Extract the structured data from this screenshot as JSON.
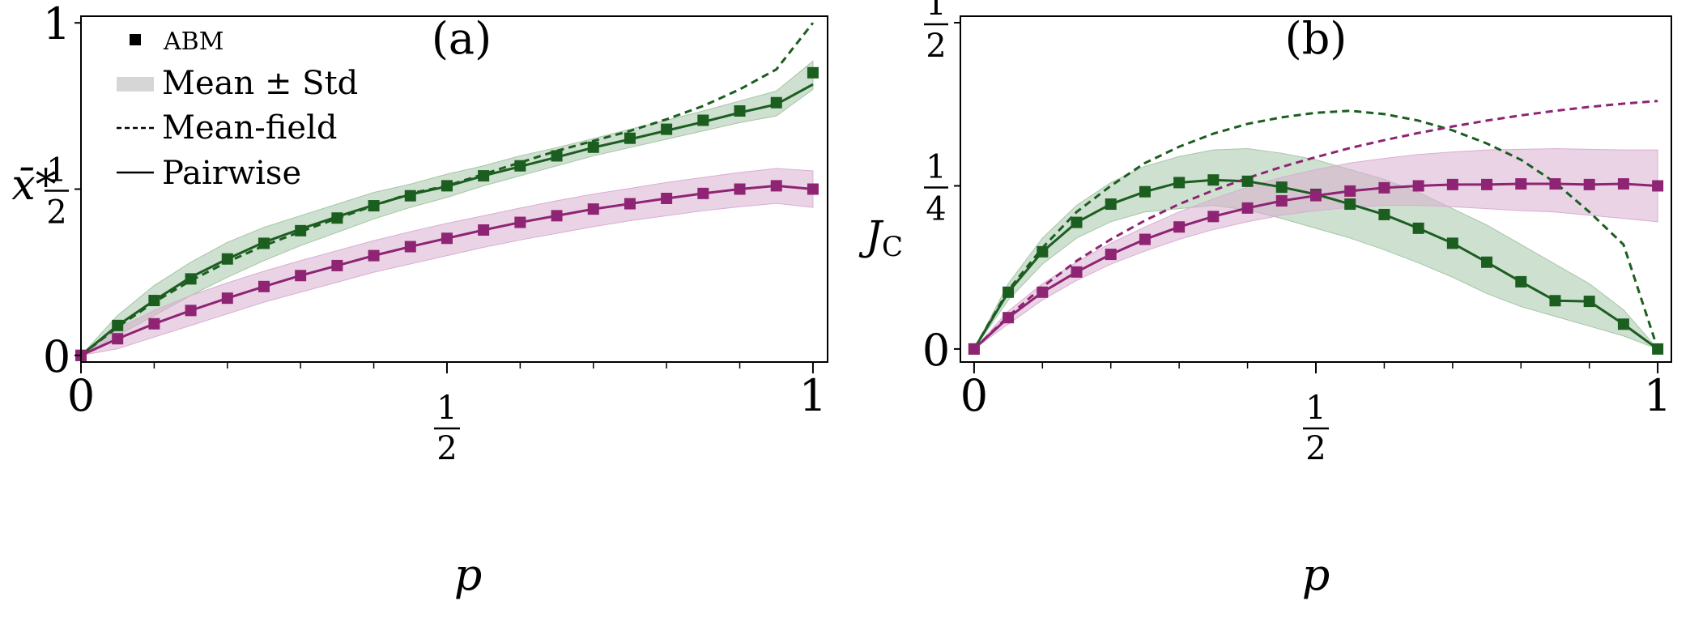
{
  "colors": {
    "green": "#1b5e20",
    "magenta": "#8e2473",
    "green_band": "#a5c6a8",
    "magenta_band": "#d9aed0",
    "legend_band": "#d6d6d6"
  },
  "legend": {
    "abm": "ABM",
    "mean_std": "Mean ± Std",
    "mean_field": "Mean-field",
    "pairwise": "Pairwise"
  },
  "chart_data": [
    {
      "type": "line",
      "panel_label": "(a)",
      "xlabel": "p",
      "ylabel": "x̄*",
      "xlim": [
        0,
        1.02
      ],
      "ylim": [
        -0.02,
        1.02
      ],
      "xticks": [
        {
          "v": 0,
          "num": "0"
        },
        {
          "v": 0.5,
          "num": "1",
          "den": "2"
        },
        {
          "v": 1,
          "num": "1"
        }
      ],
      "yticks": [
        {
          "v": 0,
          "num": "0"
        },
        {
          "v": 0.5,
          "num": "1",
          "den": "2"
        },
        {
          "v": 1,
          "num": "1"
        }
      ],
      "x": [
        0,
        0.05,
        0.1,
        0.15,
        0.2,
        0.25,
        0.3,
        0.35,
        0.4,
        0.45,
        0.5,
        0.55,
        0.6,
        0.65,
        0.7,
        0.75,
        0.8,
        0.85,
        0.9,
        0.95,
        1.0
      ],
      "series": [
        {
          "name": "green",
          "color": "green",
          "abm": [
            0,
            0.09,
            0.165,
            0.23,
            0.29,
            0.337,
            0.375,
            0.413,
            0.45,
            0.48,
            0.51,
            0.54,
            0.57,
            0.6,
            0.626,
            0.653,
            0.68,
            0.707,
            0.735,
            0.76,
            0.85
          ],
          "pairwise": [
            0,
            0.09,
            0.165,
            0.235,
            0.29,
            0.34,
            0.38,
            0.417,
            0.452,
            0.484,
            0.508,
            0.54,
            0.568,
            0.596,
            0.625,
            0.65,
            0.676,
            0.702,
            0.73,
            0.755,
            0.815
          ],
          "mean_field": [
            0,
            0.085,
            0.16,
            0.225,
            0.281,
            0.33,
            0.372,
            0.412,
            0.45,
            0.487,
            0.51,
            0.545,
            0.58,
            0.615,
            0.645,
            0.675,
            0.71,
            0.75,
            0.8,
            0.86,
            1.0
          ],
          "band_low": [
            0,
            0.06,
            0.12,
            0.18,
            0.235,
            0.285,
            0.33,
            0.37,
            0.41,
            0.445,
            0.475,
            0.51,
            0.54,
            0.57,
            0.6,
            0.625,
            0.65,
            0.675,
            0.7,
            0.72,
            0.8
          ],
          "band_high": [
            0,
            0.12,
            0.21,
            0.28,
            0.34,
            0.385,
            0.42,
            0.455,
            0.49,
            0.515,
            0.545,
            0.57,
            0.6,
            0.625,
            0.652,
            0.68,
            0.707,
            0.735,
            0.765,
            0.795,
            0.885
          ]
        },
        {
          "name": "magenta",
          "color": "magenta",
          "abm": [
            0,
            0.05,
            0.095,
            0.135,
            0.172,
            0.207,
            0.24,
            0.27,
            0.3,
            0.327,
            0.352,
            0.377,
            0.4,
            0.42,
            0.44,
            0.456,
            0.472,
            0.487,
            0.5,
            0.51,
            0.5
          ],
          "pairwise": [
            0,
            0.05,
            0.095,
            0.135,
            0.172,
            0.207,
            0.24,
            0.27,
            0.3,
            0.327,
            0.352,
            0.377,
            0.4,
            0.42,
            0.44,
            0.456,
            0.472,
            0.487,
            0.5,
            0.51,
            0.5
          ],
          "mean_field": [],
          "band_low": [
            0,
            0.02,
            0.055,
            0.09,
            0.125,
            0.16,
            0.19,
            0.22,
            0.25,
            0.275,
            0.3,
            0.325,
            0.347,
            0.367,
            0.387,
            0.405,
            0.42,
            0.435,
            0.447,
            0.457,
            0.445
          ],
          "band_high": [
            0,
            0.08,
            0.135,
            0.18,
            0.218,
            0.253,
            0.285,
            0.315,
            0.345,
            0.372,
            0.397,
            0.42,
            0.443,
            0.465,
            0.485,
            0.502,
            0.52,
            0.535,
            0.55,
            0.562,
            0.555
          ]
        }
      ]
    },
    {
      "type": "line",
      "panel_label": "(b)",
      "xlabel": "p",
      "ylabel": "J",
      "ylabel_sub": "C",
      "xlim": [
        -0.02,
        1.02
      ],
      "ylim": [
        -0.02,
        0.51
      ],
      "xticks": [
        {
          "v": 0,
          "num": "0"
        },
        {
          "v": 0.5,
          "num": "1",
          "den": "2"
        },
        {
          "v": 1,
          "num": "1"
        }
      ],
      "yticks": [
        {
          "v": 0,
          "num": "0"
        },
        {
          "v": 0.25,
          "num": "1",
          "den": "4"
        },
        {
          "v": 0.5,
          "num": "1",
          "den": "2"
        }
      ],
      "x": [
        0,
        0.05,
        0.1,
        0.15,
        0.2,
        0.25,
        0.3,
        0.35,
        0.4,
        0.45,
        0.5,
        0.55,
        0.6,
        0.65,
        0.7,
        0.75,
        0.8,
        0.85,
        0.9,
        0.95,
        1.0
      ],
      "series": [
        {
          "name": "green",
          "color": "green",
          "abm": [
            0,
            0.087,
            0.149,
            0.194,
            0.222,
            0.241,
            0.255,
            0.259,
            0.257,
            0.248,
            0.237,
            0.222,
            0.206,
            0.185,
            0.162,
            0.133,
            0.103,
            0.074,
            0.073,
            0.038,
            0.0
          ],
          "pairwise": [
            0,
            0.087,
            0.149,
            0.194,
            0.222,
            0.241,
            0.255,
            0.259,
            0.257,
            0.248,
            0.237,
            0.222,
            0.206,
            0.185,
            0.162,
            0.133,
            0.103,
            0.074,
            0.073,
            0.038,
            0.0
          ],
          "mean_field": [
            0,
            0.09,
            0.155,
            0.21,
            0.25,
            0.285,
            0.31,
            0.33,
            0.345,
            0.355,
            0.362,
            0.365,
            0.36,
            0.35,
            0.335,
            0.315,
            0.29,
            0.255,
            0.21,
            0.16,
            0.0
          ],
          "band_low": [
            0,
            0.075,
            0.13,
            0.17,
            0.195,
            0.21,
            0.215,
            0.22,
            0.213,
            0.2,
            0.185,
            0.17,
            0.152,
            0.132,
            0.11,
            0.085,
            0.065,
            0.05,
            0.035,
            0.02,
            0.0
          ],
          "band_high": [
            0,
            0.1,
            0.17,
            0.22,
            0.255,
            0.28,
            0.295,
            0.305,
            0.307,
            0.3,
            0.29,
            0.275,
            0.26,
            0.24,
            0.215,
            0.19,
            0.16,
            0.13,
            0.1,
            0.06,
            0.0
          ]
        },
        {
          "name": "magenta",
          "color": "magenta",
          "abm": [
            0,
            0.048,
            0.087,
            0.118,
            0.145,
            0.168,
            0.187,
            0.203,
            0.216,
            0.227,
            0.235,
            0.242,
            0.247,
            0.25,
            0.252,
            0.252,
            0.253,
            0.253,
            0.252,
            0.253,
            0.25
          ],
          "pairwise": [
            0,
            0.048,
            0.087,
            0.118,
            0.145,
            0.168,
            0.187,
            0.203,
            0.216,
            0.227,
            0.235,
            0.242,
            0.247,
            0.25,
            0.252,
            0.252,
            0.253,
            0.253,
            0.252,
            0.253,
            0.25
          ],
          "mean_field": [
            0,
            0.05,
            0.095,
            0.135,
            0.168,
            0.197,
            0.222,
            0.243,
            0.262,
            0.279,
            0.294,
            0.308,
            0.32,
            0.331,
            0.341,
            0.35,
            0.358,
            0.365,
            0.371,
            0.376,
            0.38
          ],
          "band_low": [
            0,
            0.038,
            0.075,
            0.105,
            0.13,
            0.15,
            0.168,
            0.183,
            0.195,
            0.205,
            0.212,
            0.217,
            0.22,
            0.22,
            0.218,
            0.215,
            0.212,
            0.21,
            0.205,
            0.2,
            0.195
          ],
          "band_high": [
            0,
            0.058,
            0.1,
            0.133,
            0.162,
            0.187,
            0.21,
            0.23,
            0.248,
            0.263,
            0.275,
            0.285,
            0.292,
            0.298,
            0.302,
            0.305,
            0.306,
            0.307,
            0.306,
            0.305,
            0.305
          ]
        }
      ]
    }
  ]
}
